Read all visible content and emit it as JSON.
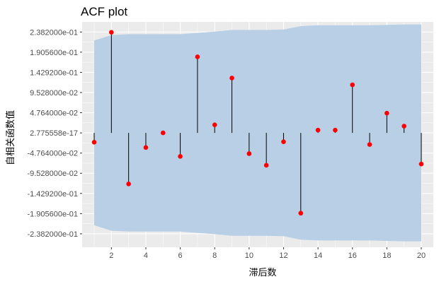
{
  "chart_data": {
    "type": "stem",
    "title": "ACF plot",
    "xlabel": "滞后数",
    "ylabel": "自相关函数值",
    "xlim": [
      0.3,
      20.7
    ],
    "ylim": [
      -0.27,
      0.262
    ],
    "x_ticks": [
      2,
      4,
      6,
      8,
      10,
      12,
      14,
      16,
      18,
      20
    ],
    "y_ticks": [
      {
        "value": 0.2382,
        "label": "2.382000e-01"
      },
      {
        "value": 0.19056,
        "label": "1.905600e-01"
      },
      {
        "value": 0.14292,
        "label": "1.429200e-01"
      },
      {
        "value": 0.09528,
        "label": "9.528000e-02"
      },
      {
        "value": 0.04764,
        "label": "4.764000e-02"
      },
      {
        "value": 0.0,
        "label": "2.775558e-17"
      },
      {
        "value": -0.04764,
        "label": "-4.764000e-02"
      },
      {
        "value": -0.09528,
        "label": "-9.528000e-02"
      },
      {
        "value": -0.14292,
        "label": "-1.429200e-01"
      },
      {
        "value": -0.19056,
        "label": "-1.905600e-01"
      },
      {
        "value": -0.2382,
        "label": "-2.382000e-01"
      }
    ],
    "lags": [
      1,
      2,
      3,
      4,
      5,
      6,
      7,
      8,
      9,
      10,
      11,
      12,
      13,
      14,
      15,
      16,
      17,
      18,
      19,
      20
    ],
    "acf": [
      -0.022,
      0.2375,
      -0.1205,
      -0.0345,
      0.0,
      -0.0555,
      0.1795,
      0.019,
      0.1295,
      -0.049,
      -0.0765,
      -0.021,
      -0.1895,
      0.0065,
      0.0065,
      0.1135,
      -0.0275,
      0.0465,
      0.016,
      -0.0735
    ],
    "confidence_band": {
      "x": [
        1,
        2,
        3,
        4,
        5,
        6,
        7,
        8,
        9,
        10,
        11,
        12,
        13,
        14,
        15,
        16,
        17,
        18,
        19,
        20
      ],
      "upper": [
        0.218,
        0.231,
        0.233,
        0.233,
        0.233,
        0.233,
        0.236,
        0.239,
        0.243,
        0.243,
        0.243,
        0.244,
        0.252,
        0.254,
        0.254,
        0.254,
        0.254,
        0.255,
        0.256,
        0.256
      ],
      "lower": [
        -0.218,
        -0.231,
        -0.233,
        -0.233,
        -0.233,
        -0.233,
        -0.236,
        -0.239,
        -0.243,
        -0.243,
        -0.243,
        -0.244,
        -0.252,
        -0.254,
        -0.254,
        -0.254,
        -0.254,
        -0.255,
        -0.256,
        -0.256
      ]
    },
    "colors": {
      "panel_background": "#ebebeb",
      "grid_major": "#ffffff",
      "band_fill": "#b8cfe6",
      "stem": "#000000",
      "point": "#ff0000"
    },
    "grid": true,
    "legend": "none"
  }
}
